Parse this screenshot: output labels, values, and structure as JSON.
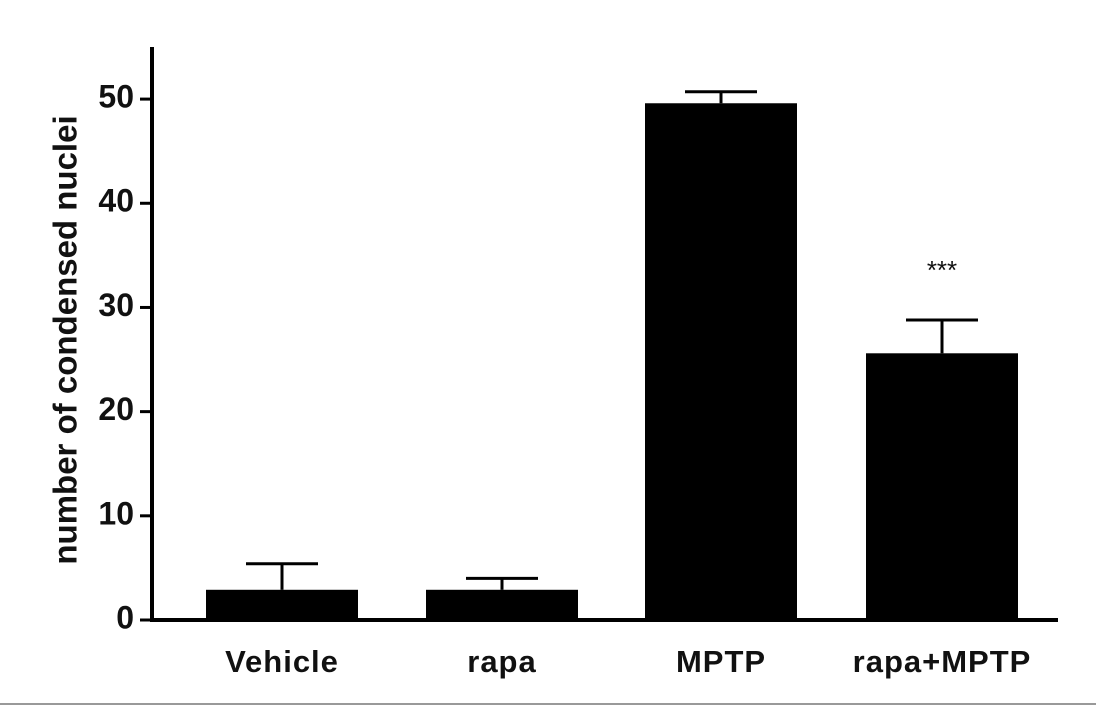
{
  "chart_data": {
    "type": "bar",
    "ylabel": "number of condensed nuclei",
    "categories": [
      "Vehicle",
      "rapa",
      "MPTP",
      "rapa+MPTP"
    ],
    "values": [
      2.9,
      2.9,
      49.6,
      25.6
    ],
    "errors": [
      2.5,
      1.1,
      1.1,
      3.2
    ],
    "color": "#000000",
    "ylim": [
      0,
      55
    ],
    "yticks": [
      0,
      10,
      20,
      30,
      40,
      50
    ],
    "annotations": [
      {
        "text": "***",
        "category": 3
      }
    ]
  }
}
